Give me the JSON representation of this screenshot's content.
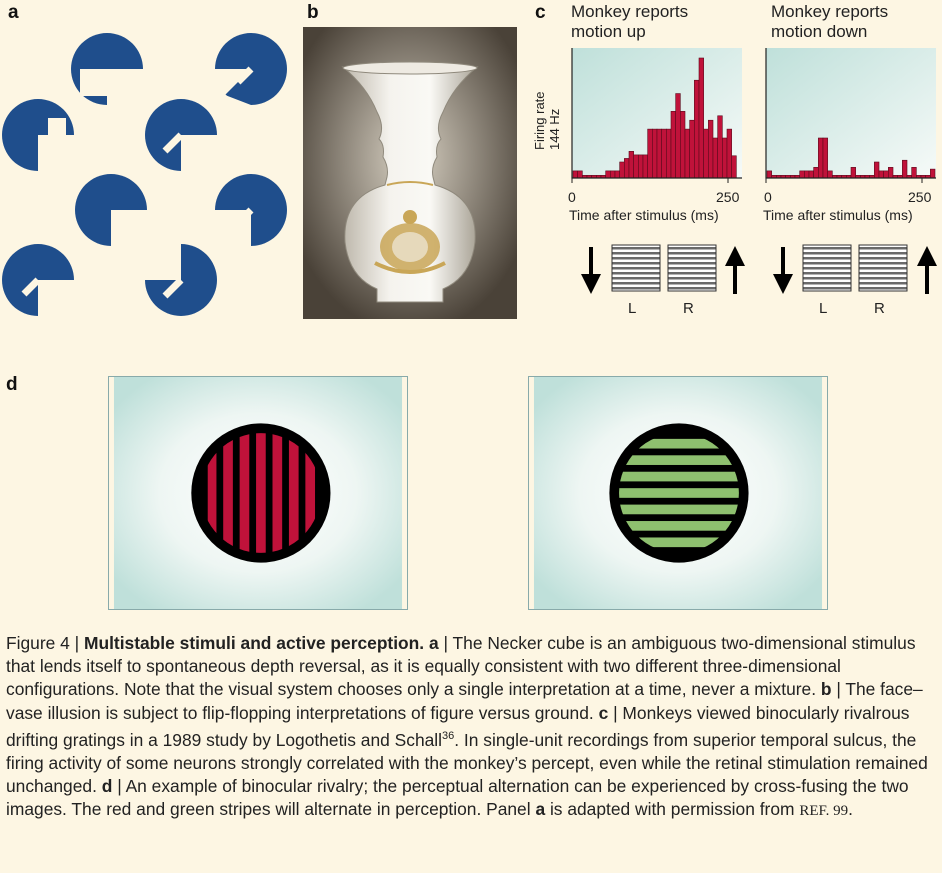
{
  "panels": {
    "a": {
      "label": "a"
    },
    "b": {
      "label": "b"
    },
    "c": {
      "label": "c",
      "left_title_line1": "Monkey reports",
      "left_title_line2": "motion up",
      "right_title_line1": "Monkey reports",
      "right_title_line2": "motion down",
      "ylabel_line1": "Firing rate",
      "ylabel_line2": "144 Hz",
      "xlabel": "Time after stimulus (ms)",
      "tick_start": "0",
      "tick_end": "250",
      "eye_left": "L",
      "eye_right": "R"
    },
    "d": {
      "label": "d"
    }
  },
  "colors": {
    "navy": "#1f4e8c",
    "crimson": "#c0123a",
    "green": "#8ec06f",
    "teal_bg": "#c9e4df",
    "page_bg": "#fdf6e3"
  },
  "chart_data": [
    {
      "type": "bar",
      "title": "Monkey reports motion up",
      "xlabel": "Time after stimulus (ms)",
      "ylabel": "Firing rate 144 Hz",
      "xlim": [
        0,
        250
      ],
      "ylim": [
        0,
        144
      ],
      "values": [
        8,
        8,
        3,
        3,
        3,
        3,
        3,
        8,
        8,
        8,
        18,
        22,
        30,
        26,
        26,
        26,
        55,
        55,
        55,
        55,
        55,
        75,
        95,
        75,
        55,
        65,
        110,
        135,
        55,
        65,
        45,
        70,
        45,
        55,
        25,
        0
      ]
    },
    {
      "type": "bar",
      "title": "Monkey reports motion down",
      "xlabel": "Time after stimulus (ms)",
      "ylabel": "",
      "xlim": [
        0,
        250
      ],
      "ylim": [
        0,
        144
      ],
      "values": [
        8,
        3,
        3,
        3,
        3,
        3,
        3,
        8,
        8,
        8,
        12,
        45,
        45,
        8,
        3,
        3,
        3,
        3,
        12,
        3,
        3,
        3,
        3,
        18,
        8,
        8,
        12,
        3,
        3,
        20,
        3,
        12,
        3,
        3,
        3,
        10
      ]
    }
  ],
  "caption": {
    "fig": "Figure 4 | ",
    "title": "Multistable stimuli and active perception.",
    "a_lbl": "a",
    "a_text": " | The Necker cube is an ambiguous two-dimensional stimulus that lends itself to spontaneous depth reversal, as it is equally consistent with two different three-dimensional configurations. Note that the visual system chooses only a single interpretation at a time, never a mixture. ",
    "b_lbl": "b",
    "b_text": " | The face–vase illusion is subject to flip-flopping interpretations of figure versus ground. ",
    "c_lbl": "c",
    "c_text": " | Monkeys viewed binocularly rivalrous drifting gratings in a 1989 study by Logothetis and Schall",
    "ref36": "36",
    "c_text2": ". In single-unit recordings from superior temporal sulcus, the firing activity of some neurons strongly correlated with the monkey’s percept, even while the retinal stimulation remained unchanged. ",
    "d_lbl": "d",
    "d_text": " | An example of binocular rivalry; the perceptual alternation can be experienced by cross-fusing the two images. The red and green stripes will alternate in perception. Panel ",
    "a_lbl2": "a",
    "a_text2": " is adapted with permission from ",
    "ref99": "REF. 99",
    "end": "."
  }
}
